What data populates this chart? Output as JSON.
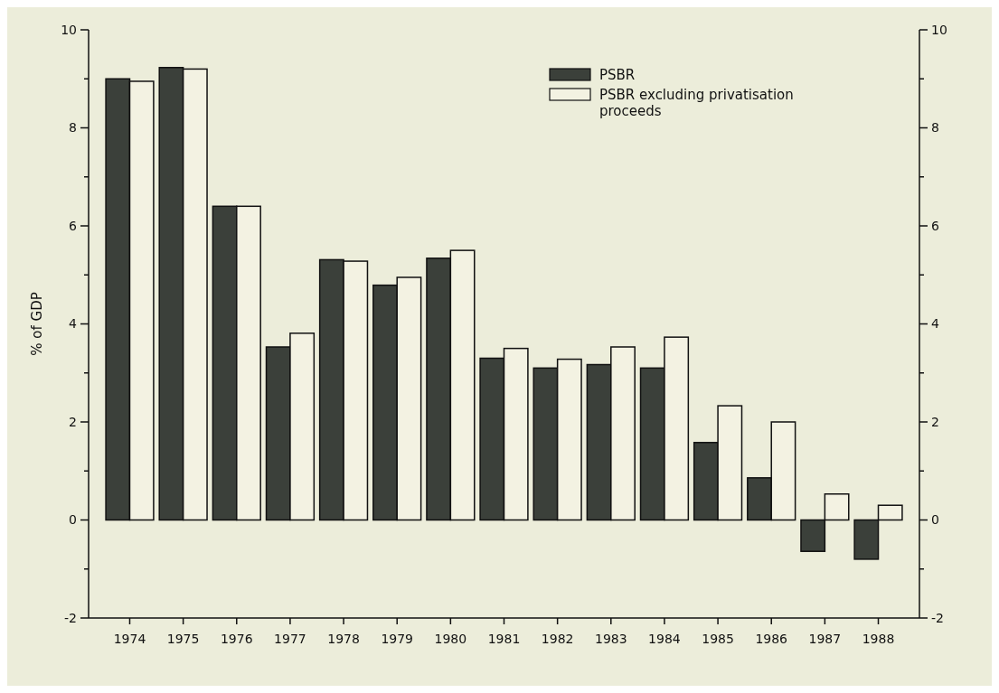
{
  "chart_data": {
    "type": "bar",
    "ylabel": "% of GDP",
    "categories": [
      "1974",
      "1975",
      "1976",
      "1977",
      "1978",
      "1979",
      "1980",
      "1981",
      "1982",
      "1983",
      "1984",
      "1985",
      "1986",
      "1987",
      "1988"
    ],
    "series": [
      {
        "name": "PSBR",
        "color": "#3b403a",
        "values": [
          9.0,
          9.23,
          6.4,
          3.53,
          5.31,
          4.79,
          5.34,
          3.3,
          3.1,
          3.17,
          3.1,
          1.58,
          0.86,
          -0.64,
          -0.8
        ]
      },
      {
        "name": "PSBR excluding privatisation proceeds",
        "color": "#f3f2e2",
        "values": [
          8.95,
          9.2,
          6.4,
          3.81,
          5.28,
          4.95,
          5.5,
          3.5,
          3.28,
          3.53,
          3.73,
          2.33,
          2.0,
          0.53,
          0.3
        ]
      }
    ],
    "ylim": [
      -2,
      10
    ],
    "yticks": [
      -2,
      {
        "value": -1,
        "label": null
      },
      0,
      {
        "value": 1,
        "label": null
      },
      2,
      {
        "value": 3,
        "label": null
      },
      4,
      {
        "value": 5,
        "label": null
      },
      6,
      {
        "value": 7,
        "label": null
      },
      8,
      {
        "value": 9,
        "label": null
      },
      10
    ],
    "y2lim": [
      -2,
      10
    ],
    "y2ticks": [
      -2,
      {
        "value": -1,
        "label": null
      },
      0,
      {
        "value": 1,
        "label": null
      },
      2,
      {
        "value": 3,
        "label": null
      },
      4,
      {
        "value": 5,
        "label": null
      },
      6,
      {
        "value": 7,
        "label": null
      },
      8,
      {
        "value": 9,
        "label": null
      },
      10
    ],
    "legend": "top right"
  }
}
